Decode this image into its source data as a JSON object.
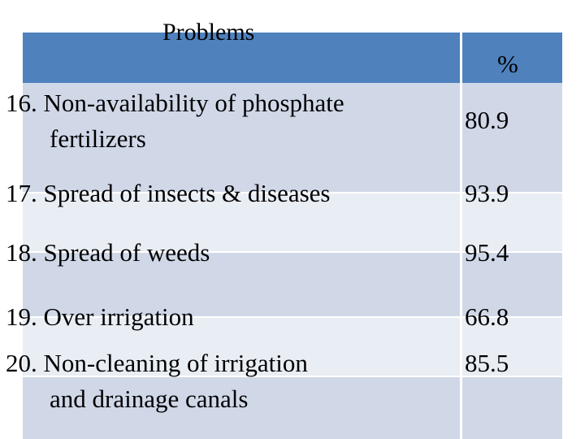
{
  "table": {
    "header": {
      "problems": "Problems",
      "percent": "%"
    },
    "rows": [
      {
        "line1": "16. Non-availability of phosphate",
        "line2": "fertilizers",
        "value": "80.9"
      },
      {
        "line1": "17. Spread of insects & diseases",
        "line2": "",
        "value": "93.9"
      },
      {
        "line1": "18. Spread of weeds",
        "line2": "",
        "value": "95.4"
      },
      {
        "line1": "19. Over irrigation",
        "line2": "",
        "value": "66.8"
      },
      {
        "line1": "20. Non-cleaning of  irrigation",
        "line2": "and drainage canals",
        "value": "85.5"
      }
    ]
  },
  "colors": {
    "header": "#4f81bd",
    "row_dark": "#d0d8e8",
    "row_light": "#e9edf4"
  }
}
